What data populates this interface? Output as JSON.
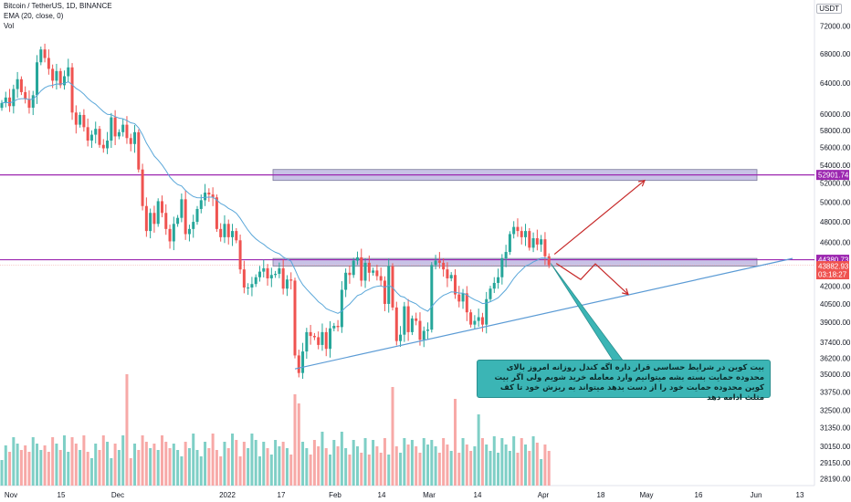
{
  "header": {
    "title": "Bitcoin / TetherUS, 1D, BINANCE",
    "ema": "EMA (20, close, 0)",
    "vol": "Vol",
    "currency": "USDT"
  },
  "annotation": {
    "text": "بیت کوین در شرایط حساسی قرار داره اگه کندل روزانه امروز بالای محدوده حمایت بسته بشه میتوانیم وارد معامله خرید شویم ولی اگر بیت کوین محدوده حمایت خود را از دست بدهد میتواند به ریزش خود تا کف مثلث ادامه دهد"
  },
  "colors": {
    "up": "#26a69a",
    "down": "#ef5350",
    "vol_up": "#7fcfc6",
    "vol_down": "#f7a9a7",
    "ema": "#5aa7d9",
    "purple_line": "#9c27b0",
    "zone_fill": "#c8c2e6",
    "trendline": "#5b9bd5",
    "arrow": "#c62828",
    "callout": "#3bb5b5"
  },
  "chart_data": {
    "type": "candlestick",
    "symbol": "BTCUSDT",
    "timeframe": "1D",
    "ylim": [
      27800,
      76000
    ],
    "y_ticks": [
      "72000.00",
      "68000.00",
      "64000.00",
      "60000.00",
      "58000.00",
      "56000.00",
      "54000.00",
      "52000.00",
      "50000.00",
      "48000.00",
      "46000.00",
      "42000.00",
      "40500.00",
      "39000.00",
      "37400.00",
      "36200.00",
      "35000.00",
      "33750.00",
      "32500.00",
      "31350.00",
      "30150.00",
      "29150.00",
      "28190.00"
    ],
    "x_labels": [
      "Nov",
      "15",
      "Dec",
      "2022",
      "17",
      "Feb",
      "14",
      "Mar",
      "14",
      "Apr",
      "18",
      "May",
      "16",
      "Jun",
      "13"
    ],
    "price_labels": [
      {
        "text": "52901.74",
        "value": 52901.74,
        "color": "#9c27b0"
      },
      {
        "text": "44380.73",
        "value": 44380.73,
        "color": "#9c27b0"
      },
      {
        "text": "43882.93",
        "value": 43882.93,
        "color": "#ef5350"
      },
      {
        "text": "03:18:27",
        "value": null,
        "color": "#ef5350"
      }
    ],
    "levels": [
      {
        "name": "resistance",
        "value": 52901.74
      },
      {
        "name": "support",
        "value": 44380.73
      }
    ],
    "zones": [
      {
        "from": 52300,
        "to": 53500
      },
      {
        "from": 43800,
        "to": 44500
      }
    ],
    "closes": [
      61400,
      62100,
      61000,
      63200,
      64500,
      62800,
      61900,
      60800,
      62400,
      66800,
      68600,
      67400,
      65900,
      64300,
      65600,
      63700,
      64900,
      66100,
      60200,
      58700,
      59900,
      58400,
      56800,
      57500,
      58200,
      56300,
      55900,
      56800,
      59600,
      57300,
      57800,
      58700,
      57100,
      56400,
      57800,
      53500,
      49600,
      47100,
      48900,
      47800,
      50100,
      48900,
      47300,
      46100,
      47800,
      48400,
      50300,
      46800,
      47300,
      48000,
      49300,
      50200,
      51000,
      50800,
      50500,
      47300,
      46500,
      47800,
      46500,
      47100,
      46200,
      43500,
      41900,
      41900,
      42200,
      42800,
      43300,
      43600,
      42700,
      43000,
      43100,
      43600,
      41800,
      42600,
      42500,
      36400,
      35100,
      36700,
      38200,
      37900,
      37800,
      37200,
      38200,
      36900,
      38500,
      38700,
      38600,
      41700,
      43200,
      43000,
      44300,
      44600,
      42500,
      44100,
      43200,
      43400,
      42900,
      42500,
      40500,
      43800,
      40200,
      37500,
      38000,
      40300,
      38200,
      39300,
      39100,
      37600,
      38300,
      38400,
      43900,
      44300,
      44100,
      43500,
      42700,
      43000,
      41300,
      40700,
      41400,
      39800,
      38800,
      39100,
      39400,
      38800,
      40900,
      41800,
      42300,
      42800,
      44500,
      45100,
      46800,
      47500,
      47100,
      46500,
      47100,
      45500,
      46400,
      45800,
      46300,
      44700,
      43883
    ],
    "ema20_note": "EMA (20, close) overlay",
    "trendline": {
      "from": {
        "index": 75,
        "price": 35400
      },
      "to": {
        "index": 205,
        "price": 44700
      }
    }
  }
}
